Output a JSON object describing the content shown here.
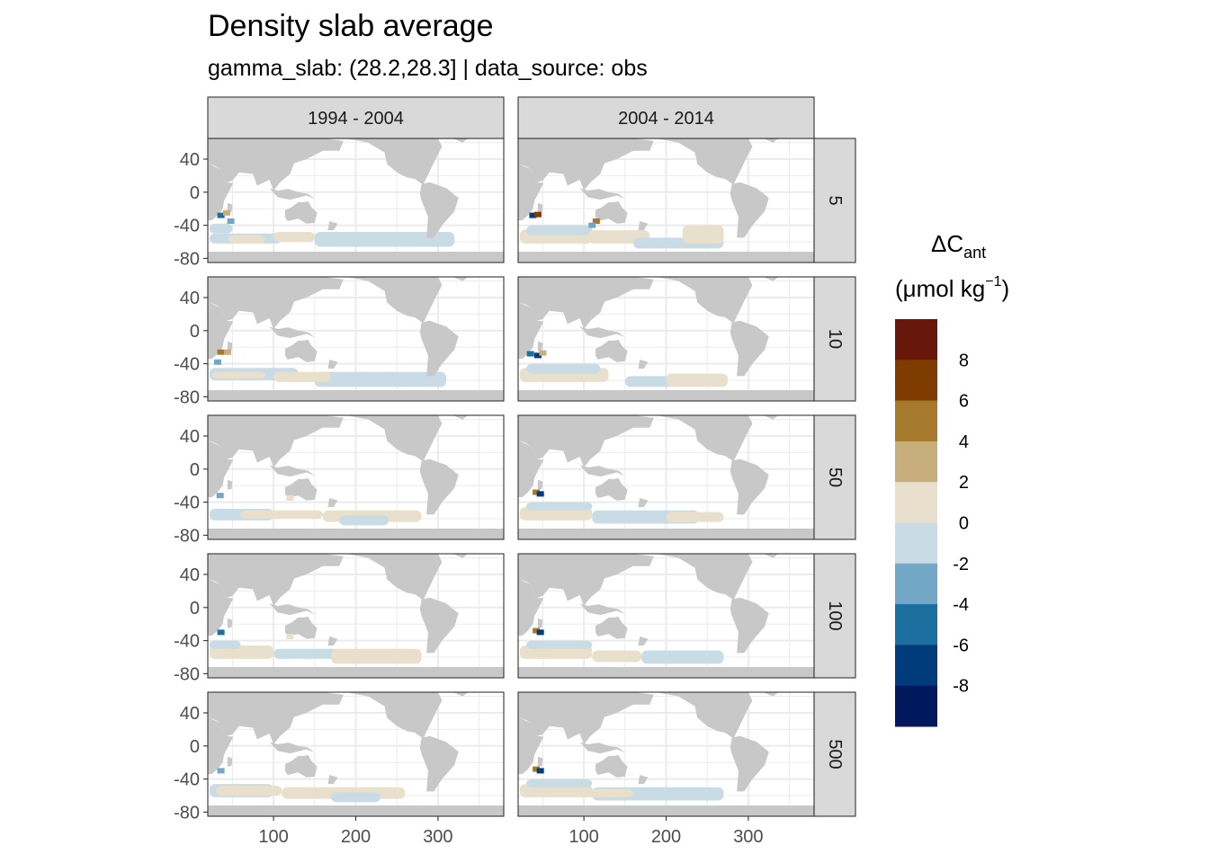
{
  "chart_data": {
    "type": "heatmap",
    "title": "Density slab average",
    "subtitle": "gamma_slab: (28.2,28.3] | data_source: obs",
    "facet_columns": [
      "1994 - 2004",
      "2004 - 2014"
    ],
    "facet_rows": [
      "5",
      "10",
      "50",
      "100",
      "500"
    ],
    "x_ticks": [
      "100",
      "200",
      "300"
    ],
    "x_tick_values": [
      100,
      200,
      300
    ],
    "xlim": [
      20,
      380
    ],
    "y_ticks": [
      "40",
      "0",
      "-40",
      "-80"
    ],
    "y_tick_values": [
      40,
      0,
      -40,
      -80
    ],
    "ylim": [
      -85,
      65
    ],
    "grid": true,
    "legend": {
      "title_main": "ΔC",
      "title_sub": "ant",
      "unit_main": "(μmol kg",
      "unit_sup": "−1",
      "unit_close": ")",
      "position": "right",
      "tick_labels": [
        "8",
        "6",
        "4",
        "2",
        "0",
        "-2",
        "-4",
        "-6",
        "-8"
      ],
      "tick_values": [
        8,
        6,
        4,
        2,
        0,
        -2,
        -4,
        -6,
        -8
      ],
      "bins": [
        {
          "min": 8,
          "max": 10,
          "color": "#67180a"
        },
        {
          "min": 6,
          "max": 8,
          "color": "#7f3c00"
        },
        {
          "min": 4,
          "max": 6,
          "color": "#a67a2c"
        },
        {
          "min": 2,
          "max": 4,
          "color": "#c8ae7a"
        },
        {
          "min": 0,
          "max": 2,
          "color": "#e8dfcc"
        },
        {
          "min": -2,
          "max": 0,
          "color": "#c9dce6"
        },
        {
          "min": -4,
          "max": -2,
          "color": "#72a8c6"
        },
        {
          "min": -6,
          "max": -4,
          "color": "#1d6fa0"
        },
        {
          "min": -8,
          "max": -6,
          "color": "#003b7c"
        },
        {
          "min": -10,
          "max": -8,
          "color": "#00185c"
        }
      ]
    },
    "land_color": "#c8c8c8",
    "panels": [
      {
        "col": 0,
        "row": 0,
        "bands": [
          {
            "lon": [
              22,
              110
            ],
            "lat": [
              -62,
              -50
            ],
            "v": -1
          },
          {
            "lon": [
              45,
              90
            ],
            "lat": [
              -62,
              -52
            ],
            "v": 1
          },
          {
            "lon": [
              100,
              150
            ],
            "lat": [
              -60,
              -48
            ],
            "v": 1
          },
          {
            "lon": [
              150,
              320
            ],
            "lat": [
              -66,
              -48
            ],
            "v": -1
          },
          {
            "lon": [
              22,
              50
            ],
            "lat": [
              -50,
              -38
            ],
            "v": -1
          }
        ],
        "spots": [
          {
            "lon": 36,
            "lat": -28,
            "v": -5
          },
          {
            "lon": 43,
            "lat": -25,
            "v": 3
          },
          {
            "lon": 48,
            "lat": -35,
            "v": -3
          }
        ]
      },
      {
        "col": 1,
        "row": 0,
        "bands": [
          {
            "lon": [
              22,
              110
            ],
            "lat": [
              -62,
              -45
            ],
            "v": 1
          },
          {
            "lon": [
              30,
              110
            ],
            "lat": [
              -52,
              -40
            ],
            "v": -1
          },
          {
            "lon": [
              105,
              180
            ],
            "lat": [
              -62,
              -46
            ],
            "v": 1
          },
          {
            "lon": [
              160,
              270
            ],
            "lat": [
              -68,
              -55
            ],
            "v": -1
          },
          {
            "lon": [
              220,
              270
            ],
            "lat": [
              -62,
              -40
            ],
            "v": 1
          }
        ],
        "spots": [
          {
            "lon": 38,
            "lat": -28,
            "v": -7
          },
          {
            "lon": 44,
            "lat": -27,
            "v": 7
          },
          {
            "lon": 115,
            "lat": -35,
            "v": 5
          },
          {
            "lon": 110,
            "lat": -40,
            "v": -3
          }
        ]
      },
      {
        "col": 0,
        "row": 1,
        "bands": [
          {
            "lon": [
              22,
              130
            ],
            "lat": [
              -60,
              -45
            ],
            "v": -1
          },
          {
            "lon": [
              25,
              90
            ],
            "lat": [
              -58,
              -50
            ],
            "v": 1
          },
          {
            "lon": [
              150,
              310
            ],
            "lat": [
              -68,
              -50
            ],
            "v": -1
          },
          {
            "lon": [
              100,
              170
            ],
            "lat": [
              -62,
              -50
            ],
            "v": 1
          }
        ],
        "spots": [
          {
            "lon": 36,
            "lat": -26,
            "v": 5
          },
          {
            "lon": 44,
            "lat": -26,
            "v": 3
          },
          {
            "lon": 32,
            "lat": -38,
            "v": -3
          }
        ]
      },
      {
        "col": 1,
        "row": 1,
        "bands": [
          {
            "lon": [
              22,
              130
            ],
            "lat": [
              -62,
              -45
            ],
            "v": 1
          },
          {
            "lon": [
              30,
              120
            ],
            "lat": [
              -52,
              -40
            ],
            "v": -1
          },
          {
            "lon": [
              150,
              210
            ],
            "lat": [
              -68,
              -55
            ],
            "v": -1
          },
          {
            "lon": [
              200,
              275
            ],
            "lat": [
              -68,
              -52
            ],
            "v": 1
          }
        ],
        "spots": [
          {
            "lon": 35,
            "lat": -28,
            "v": -5
          },
          {
            "lon": 44,
            "lat": -30,
            "v": -7
          },
          {
            "lon": 50,
            "lat": -27,
            "v": 3
          }
        ]
      },
      {
        "col": 0,
        "row": 2,
        "bands": [
          {
            "lon": [
              22,
              100
            ],
            "lat": [
              -62,
              -48
            ],
            "v": -1
          },
          {
            "lon": [
              60,
              160
            ],
            "lat": [
              -60,
              -50
            ],
            "v": 1
          },
          {
            "lon": [
              160,
              280
            ],
            "lat": [
              -64,
              -50
            ],
            "v": 1
          },
          {
            "lon": [
              180,
              240
            ],
            "lat": [
              -68,
              -56
            ],
            "v": -1
          }
        ],
        "spots": [
          {
            "lon": 35,
            "lat": -32,
            "v": -3
          },
          {
            "lon": 120,
            "lat": -35,
            "v": 1
          }
        ]
      },
      {
        "col": 1,
        "row": 2,
        "bands": [
          {
            "lon": [
              22,
              110
            ],
            "lat": [
              -62,
              -46
            ],
            "v": 1
          },
          {
            "lon": [
              30,
              110
            ],
            "lat": [
              -50,
              -40
            ],
            "v": -1
          },
          {
            "lon": [
              110,
              240
            ],
            "lat": [
              -66,
              -50
            ],
            "v": -1
          },
          {
            "lon": [
              200,
              270
            ],
            "lat": [
              -64,
              -52
            ],
            "v": 1
          }
        ],
        "spots": [
          {
            "lon": 42,
            "lat": -28,
            "v": 5
          },
          {
            "lon": 47,
            "lat": -30,
            "v": -7
          }
        ]
      },
      {
        "col": 0,
        "row": 3,
        "bands": [
          {
            "lon": [
              22,
              100
            ],
            "lat": [
              -62,
              -46
            ],
            "v": 1
          },
          {
            "lon": [
              22,
              60
            ],
            "lat": [
              -50,
              -40
            ],
            "v": -1
          },
          {
            "lon": [
              100,
              180
            ],
            "lat": [
              -62,
              -50
            ],
            "v": -1
          },
          {
            "lon": [
              170,
              280
            ],
            "lat": [
              -68,
              -50
            ],
            "v": 1
          }
        ],
        "spots": [
          {
            "lon": 36,
            "lat": -30,
            "v": -5
          },
          {
            "lon": 120,
            "lat": -35,
            "v": 1
          }
        ]
      },
      {
        "col": 1,
        "row": 3,
        "bands": [
          {
            "lon": [
              22,
              110
            ],
            "lat": [
              -62,
              -46
            ],
            "v": 1
          },
          {
            "lon": [
              30,
              110
            ],
            "lat": [
              -50,
              -40
            ],
            "v": -1
          },
          {
            "lon": [
              110,
              170
            ],
            "lat": [
              -66,
              -52
            ],
            "v": 1
          },
          {
            "lon": [
              170,
              270
            ],
            "lat": [
              -68,
              -52
            ],
            "v": -1
          }
        ],
        "spots": [
          {
            "lon": 42,
            "lat": -28,
            "v": 5
          },
          {
            "lon": 47,
            "lat": -30,
            "v": -7
          }
        ]
      },
      {
        "col": 0,
        "row": 4,
        "bands": [
          {
            "lon": [
              22,
              100
            ],
            "lat": [
              -62,
              -46
            ],
            "v": -1
          },
          {
            "lon": [
              30,
              110
            ],
            "lat": [
              -60,
              -48
            ],
            "v": 1
          },
          {
            "lon": [
              110,
              260
            ],
            "lat": [
              -64,
              -50
            ],
            "v": 1
          },
          {
            "lon": [
              170,
              230
            ],
            "lat": [
              -68,
              -56
            ],
            "v": -1
          }
        ],
        "spots": [
          {
            "lon": 36,
            "lat": -30,
            "v": -3
          }
        ]
      },
      {
        "col": 1,
        "row": 4,
        "bands": [
          {
            "lon": [
              22,
              110
            ],
            "lat": [
              -62,
              -46
            ],
            "v": 1
          },
          {
            "lon": [
              30,
              110
            ],
            "lat": [
              -50,
              -40
            ],
            "v": -1
          },
          {
            "lon": [
              110,
              270
            ],
            "lat": [
              -66,
              -50
            ],
            "v": -1
          },
          {
            "lon": [
              100,
              160
            ],
            "lat": [
              -62,
              -52
            ],
            "v": 1
          }
        ],
        "spots": [
          {
            "lon": 42,
            "lat": -28,
            "v": 5
          },
          {
            "lon": 47,
            "lat": -30,
            "v": -7
          }
        ]
      }
    ]
  }
}
